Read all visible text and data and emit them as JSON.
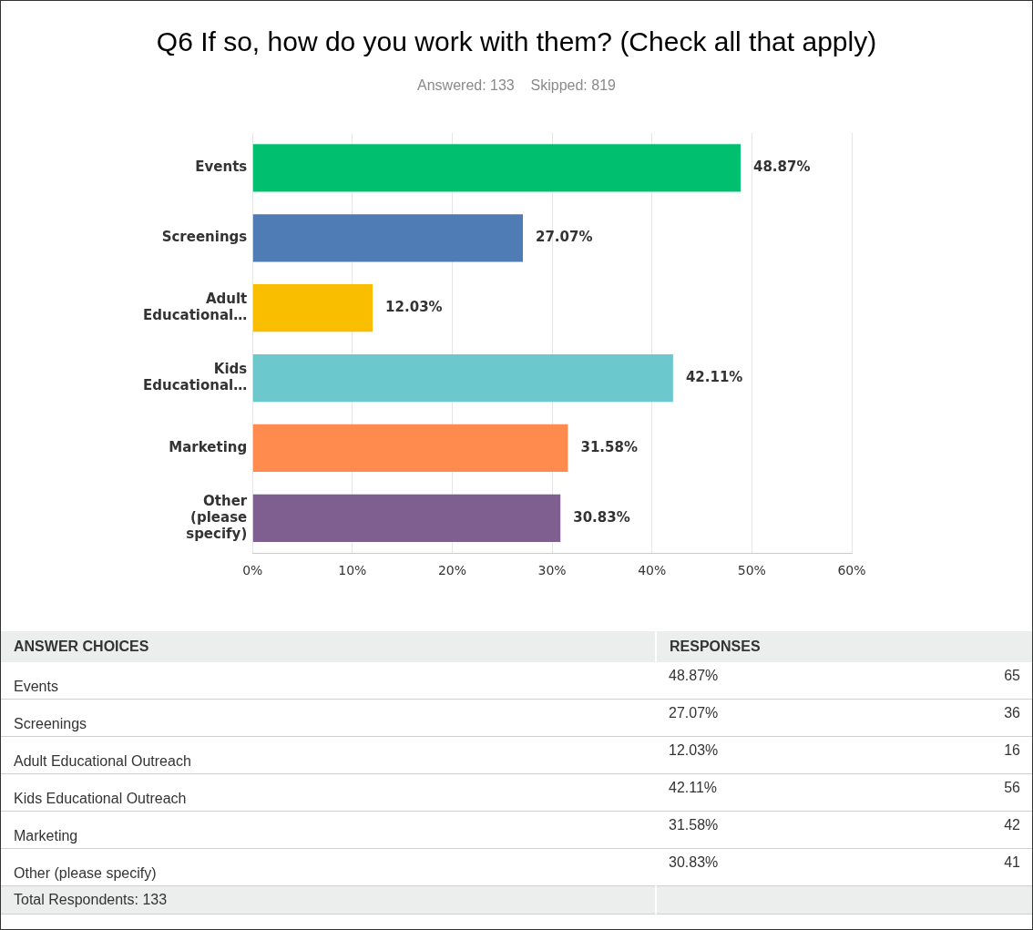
{
  "chart_data": [
    {
      "type": "bar",
      "orientation": "horizontal",
      "title": "Q6 If so, how do you work with them? (Check all that apply)",
      "subtitle": "Answered: 133    Skipped: 819",
      "categories": [
        "Events",
        "Screenings",
        "Adult Educational…",
        "Kids Educational…",
        "Marketing",
        "Other (please specify)"
      ],
      "values": [
        48.87,
        27.07,
        12.03,
        42.11,
        31.58,
        30.83
      ],
      "colors": [
        "#00bf6f",
        "#507cb6",
        "#f9be00",
        "#6bc8cd",
        "#ff8b4f",
        "#7f5f90"
      ],
      "value_labels": [
        "48.87%",
        "27.07%",
        "12.03%",
        "42.11%",
        "31.58%",
        "30.83%"
      ],
      "xlim": [
        0,
        60
      ],
      "xticks": [
        {
          "value": 0,
          "label": "0%"
        },
        {
          "value": 10,
          "label": "10%"
        },
        {
          "value": 20,
          "label": "20%"
        },
        {
          "value": 30,
          "label": "30%"
        },
        {
          "value": 40,
          "label": "40%"
        },
        {
          "value": 50,
          "label": "50%"
        },
        {
          "value": 60,
          "label": "60%"
        }
      ],
      "grid": "x"
    },
    {
      "type": "other",
      "categories": [
        "Events",
        "Screenings",
        "Adult Educational Outreach",
        "Kids Educational Outreach",
        "Marketing",
        "Other (please specify)"
      ],
      "series": [
        {
          "values": [
            48.87,
            27.07,
            12.03,
            42.11,
            31.58,
            30.83
          ],
          "value_labels": [
            "48.87%",
            "27.07%",
            "12.03%",
            "42.11%",
            "31.58%",
            "30.83%"
          ]
        },
        {
          "values": [
            65,
            36,
            16,
            56,
            42,
            41
          ]
        }
      ],
      "data_labels": true,
      "annotations": [
        "ANSWER CHOICES",
        "RESPONSES",
        "Total Respondents: 133"
      ]
    }
  ]
}
